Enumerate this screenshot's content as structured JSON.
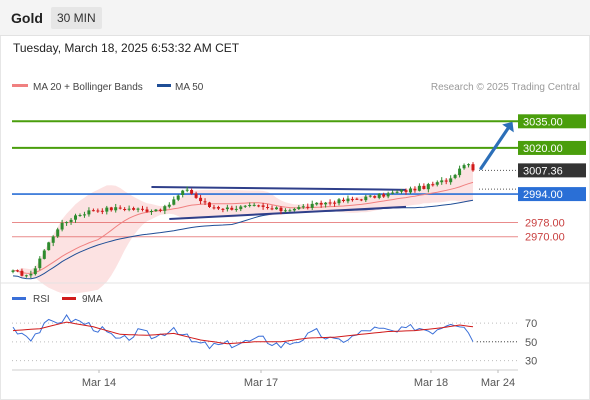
{
  "header": {
    "symbol": "Gold",
    "timeframe": "30 MIN"
  },
  "timestamp": "Tuesday, March 18, 2025 6:53:32 AM CET",
  "legend": {
    "ma20_bb": "MA 20 + Bollinger Bands",
    "ma50": "MA 50",
    "rsi": "RSI",
    "ma9": "9MA"
  },
  "credit": "Research © 2025 Trading Central",
  "colors": {
    "resistance": "#4a9e0c",
    "support": "#2a6fd6",
    "pivot": "#2a6fd6",
    "minor_support": "#e05a5a",
    "last_price": "#333333",
    "candle_up": "#2e8b2e",
    "candle_down": "#d11a1a",
    "ma20": "#f08080",
    "bollinger_fill": "#fbd8d8",
    "ma50": "#1f4e96",
    "trendline": "#2f3f8a",
    "arrow": "#2c6fb8",
    "rsi": "#3a6fd8",
    "rsi_ma9": "#d11a1a"
  },
  "chart_data": [
    {
      "type": "candlestick",
      "title": "Gold",
      "timeframe": "30 MIN",
      "x_ticks": [
        "Mar 14",
        "Mar 17",
        "Mar 18",
        "Mar 24"
      ],
      "ylim": [
        2958,
        3047
      ],
      "grid": false,
      "levels": [
        {
          "label": "3035.00",
          "value": 3035.0,
          "kind": "resistance"
        },
        {
          "label": "3020.00",
          "value": 3020.0,
          "kind": "resistance"
        },
        {
          "label": "3007.36",
          "value": 3007.36,
          "kind": "last_price"
        },
        {
          "label": "2994.00",
          "value": 2994.0,
          "kind": "pivot"
        },
        {
          "label": "2978.00",
          "value": 2978.0,
          "kind": "minor_support"
        },
        {
          "label": "2970.00",
          "value": 2970.0,
          "kind": "minor_support"
        }
      ],
      "price_waypoints": [
        [
          0,
          2950
        ],
        [
          4,
          2948
        ],
        [
          6,
          2958
        ],
        [
          10,
          2975
        ],
        [
          14,
          2982
        ],
        [
          18,
          2985
        ],
        [
          24,
          2986
        ],
        [
          30,
          2985
        ],
        [
          34,
          2986
        ],
        [
          37,
          2993
        ],
        [
          39,
          2997
        ],
        [
          41,
          2992
        ],
        [
          44,
          2987
        ],
        [
          48,
          2986
        ],
        [
          54,
          2987
        ],
        [
          60,
          2985
        ],
        [
          66,
          2987
        ],
        [
          70,
          2989
        ],
        [
          76,
          2991
        ],
        [
          82,
          2993
        ],
        [
          88,
          2996
        ],
        [
          94,
          2999
        ],
        [
          98,
          3003
        ],
        [
          100,
          3009
        ],
        [
          102,
          3012
        ],
        [
          103,
          3007
        ]
      ],
      "series": [
        {
          "name": "MA 20 + Bollinger Bands",
          "style": "line with band"
        },
        {
          "name": "MA 50",
          "style": "line"
        }
      ],
      "annotations": [
        "converging trendlines (triangle) between Mar 14 and Mar 18",
        "upward arrow toward 3035.00"
      ]
    },
    {
      "type": "line",
      "title": "RSI",
      "ylim": [
        20,
        85
      ],
      "y_ticks": [
        70,
        50,
        30
      ],
      "x_ticks": [
        "Mar 14",
        "Mar 17",
        "Mar 18",
        "Mar 24"
      ],
      "series": [
        {
          "name": "RSI",
          "waypoints": [
            [
              0,
              65
            ],
            [
              4,
              55
            ],
            [
              8,
              70
            ],
            [
              12,
              75
            ],
            [
              16,
              70
            ],
            [
              20,
              62
            ],
            [
              24,
              50
            ],
            [
              28,
              60
            ],
            [
              32,
              55
            ],
            [
              36,
              66
            ],
            [
              40,
              50
            ],
            [
              44,
              45
            ],
            [
              50,
              48
            ],
            [
              56,
              53
            ],
            [
              60,
              46
            ],
            [
              64,
              52
            ],
            [
              68,
              60
            ],
            [
              72,
              50
            ],
            [
              76,
              55
            ],
            [
              80,
              64
            ],
            [
              86,
              60
            ],
            [
              90,
              66
            ],
            [
              94,
              62
            ],
            [
              98,
              72
            ],
            [
              101,
              68
            ],
            [
              103,
              52
            ]
          ]
        },
        {
          "name": "9MA",
          "waypoints": [
            [
              0,
              62
            ],
            [
              6,
              64
            ],
            [
              12,
              71
            ],
            [
              18,
              66
            ],
            [
              24,
              58
            ],
            [
              30,
              57
            ],
            [
              36,
              59
            ],
            [
              42,
              52
            ],
            [
              48,
              48
            ],
            [
              54,
              50
            ],
            [
              60,
              50
            ],
            [
              66,
              54
            ],
            [
              72,
              55
            ],
            [
              78,
              58
            ],
            [
              84,
              61
            ],
            [
              90,
              62
            ],
            [
              96,
              65
            ],
            [
              100,
              68
            ],
            [
              103,
              66
            ]
          ]
        }
      ]
    }
  ]
}
